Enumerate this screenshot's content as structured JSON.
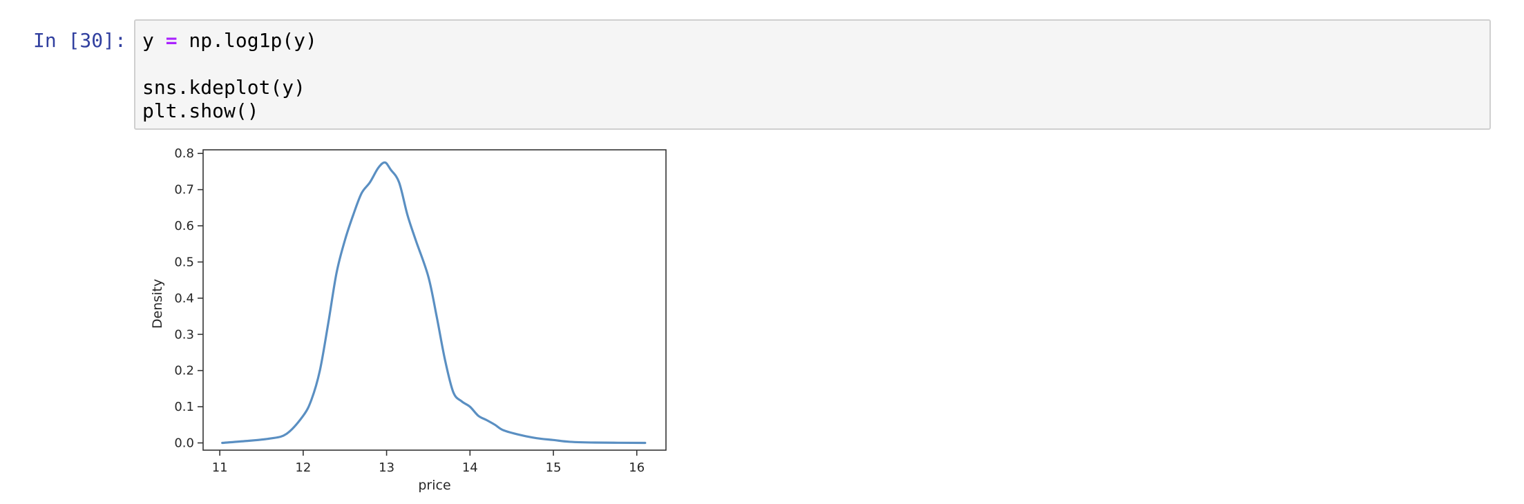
{
  "cell": {
    "prompt": "In [30]:",
    "code_lines": [
      {
        "pre": "y ",
        "op": "=",
        "post": " np.log1p(y)"
      },
      {
        "pre": "",
        "op": "",
        "post": ""
      },
      {
        "pre": "sns.kdeplot(y)",
        "op": "",
        "post": ""
      },
      {
        "pre": "plt.show()",
        "op": "",
        "post": ""
      }
    ]
  },
  "colors": {
    "prompt": "#303f9f",
    "operator": "#aa22ff",
    "line": "#5a8fc2",
    "cell_bg": "#f5f5f5",
    "cell_border": "#cfcfcf"
  },
  "chart_data": {
    "type": "line",
    "title": "",
    "xlabel": "price",
    "ylabel": "Density",
    "xlim": [
      10.8,
      16.35
    ],
    "ylim": [
      -0.02,
      0.81
    ],
    "xticks": [
      11,
      12,
      13,
      14,
      15,
      16
    ],
    "xtick_labels": [
      "11",
      "12",
      "13",
      "14",
      "15",
      "16"
    ],
    "yticks": [
      0.0,
      0.1,
      0.2,
      0.3,
      0.4,
      0.5,
      0.6,
      0.7,
      0.8
    ],
    "ytick_labels": [
      "0.0",
      "0.1",
      "0.2",
      "0.3",
      "0.4",
      "0.5",
      "0.6",
      "0.7",
      "0.8"
    ],
    "grid": false,
    "series": [
      {
        "name": "",
        "x": [
          11.03,
          11.3,
          11.6,
          11.8,
          12.0,
          12.1,
          12.2,
          12.3,
          12.4,
          12.5,
          12.6,
          12.7,
          12.8,
          12.9,
          12.98,
          13.05,
          13.15,
          13.25,
          13.35,
          13.5,
          13.6,
          13.7,
          13.8,
          13.9,
          14.0,
          14.1,
          14.2,
          14.3,
          14.4,
          14.6,
          14.8,
          15.0,
          15.2,
          15.5,
          16.1
        ],
        "y": [
          0.0,
          0.005,
          0.012,
          0.025,
          0.075,
          0.12,
          0.2,
          0.33,
          0.47,
          0.56,
          0.63,
          0.69,
          0.72,
          0.76,
          0.775,
          0.755,
          0.72,
          0.63,
          0.56,
          0.46,
          0.35,
          0.23,
          0.14,
          0.115,
          0.1,
          0.075,
          0.063,
          0.05,
          0.035,
          0.022,
          0.013,
          0.008,
          0.003,
          0.001,
          0.0
        ]
      }
    ]
  }
}
